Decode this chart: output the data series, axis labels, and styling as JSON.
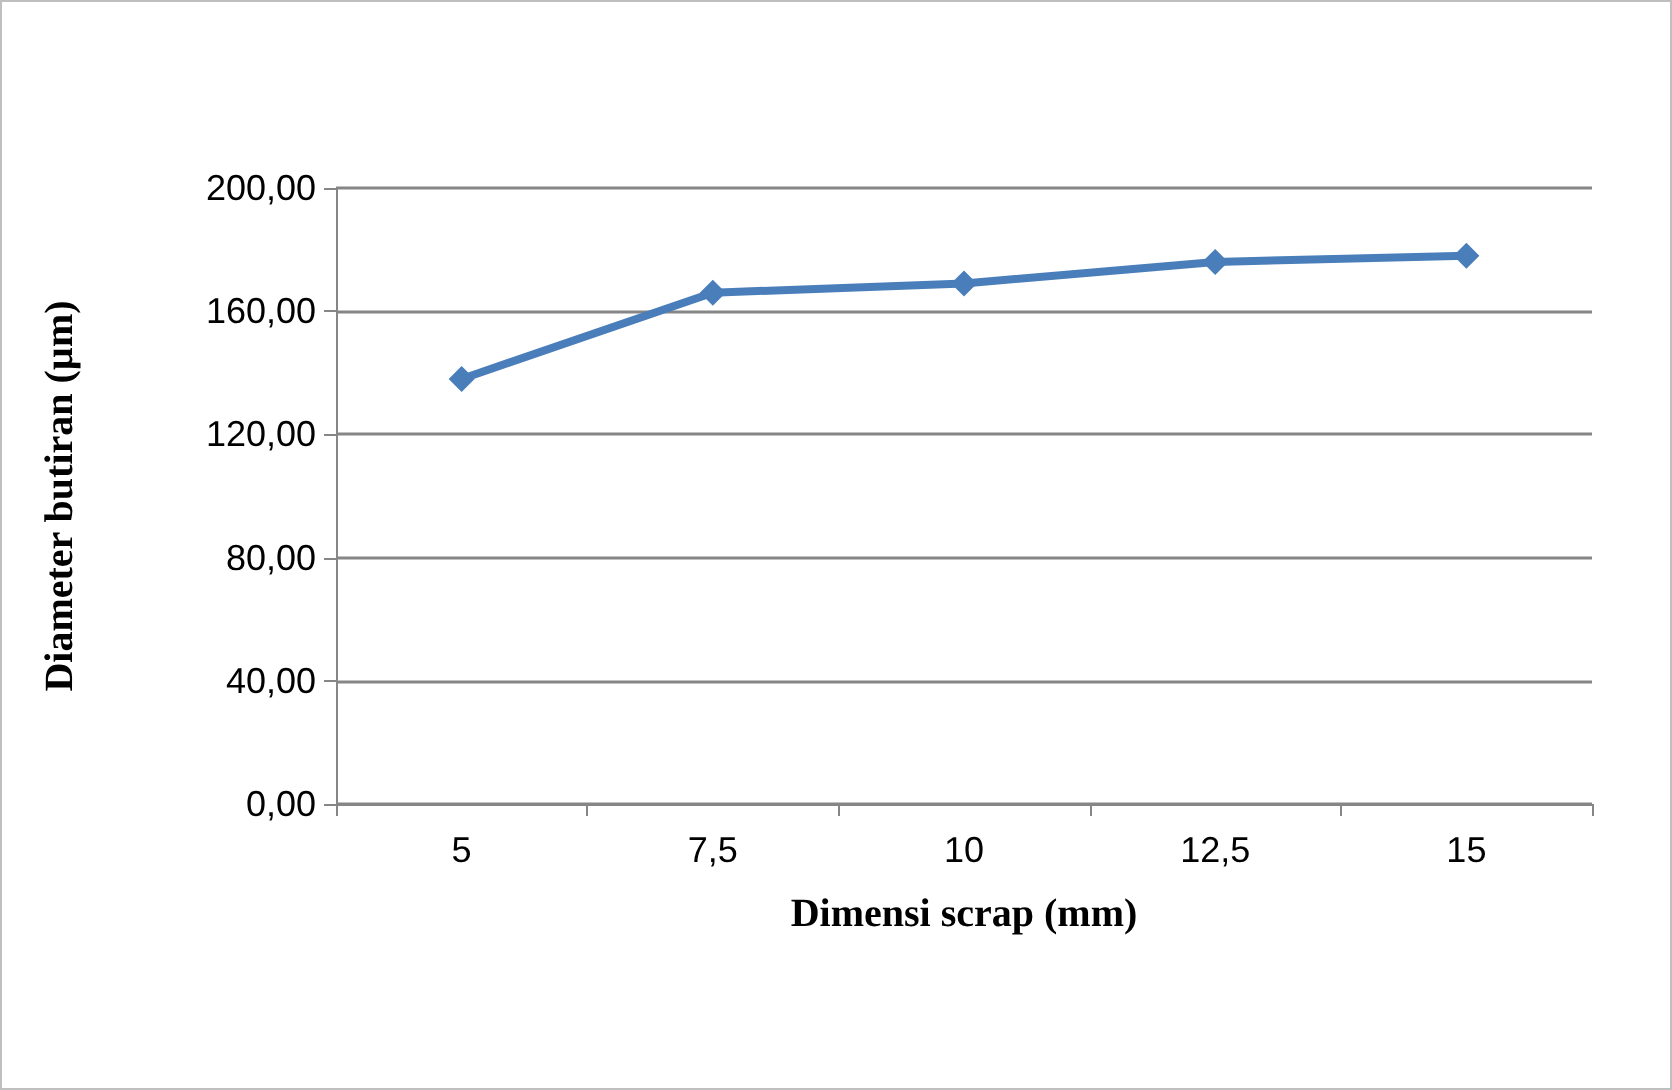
{
  "chart_data": {
    "type": "line",
    "xlabel": "Dimensi scrap (mm)",
    "ylabel": "Diameter butiran (µm)",
    "categories": [
      "5",
      "7,5",
      "10",
      "12,5",
      "15"
    ],
    "series": [
      {
        "color": "#4a7ebb",
        "values": [
          138,
          166,
          169,
          176,
          178
        ]
      }
    ],
    "ylim": [
      0,
      200
    ],
    "yticks": [
      {
        "value": 0,
        "label": "0,00"
      },
      {
        "value": 40,
        "label": "40,00"
      },
      {
        "value": 80,
        "label": "80,00"
      },
      {
        "value": 120,
        "label": "120,00"
      },
      {
        "value": 160,
        "label": "160,00"
      },
      {
        "value": 200,
        "label": "200,00"
      }
    ],
    "grid": "y",
    "marker": "diamond",
    "line_style": "solid"
  }
}
